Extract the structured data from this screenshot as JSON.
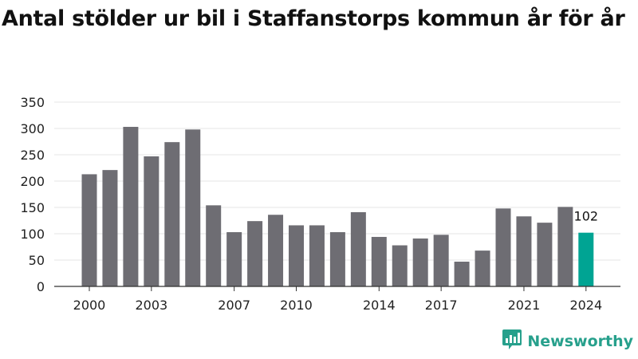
{
  "chart_data": {
    "type": "bar",
    "title": "Antal stölder ur bil i Staffanstorps kommun år för år",
    "xlabel": "",
    "ylabel": "",
    "categories": [
      "2000",
      "2001",
      "2002",
      "2003",
      "2004",
      "2005",
      "2006",
      "2007",
      "2008",
      "2009",
      "2010",
      "2011",
      "2012",
      "2013",
      "2014",
      "2015",
      "2016",
      "2017",
      "2018",
      "2019",
      "2020",
      "2021",
      "2022",
      "2023",
      "2024"
    ],
    "values": [
      213,
      221,
      303,
      247,
      274,
      298,
      154,
      103,
      124,
      136,
      116,
      116,
      103,
      141,
      94,
      78,
      91,
      98,
      47,
      68,
      148,
      133,
      121,
      151,
      102
    ],
    "x_tick_labels": [
      "2000",
      "2003",
      "2007",
      "2010",
      "2014",
      "2017",
      "2021",
      "2024"
    ],
    "y_ticks": [
      0,
      50,
      100,
      150,
      200,
      250,
      300,
      350
    ],
    "ylim": [
      0,
      350
    ],
    "grid": true,
    "highlight": {
      "category": "2024",
      "label": "102"
    },
    "colors": {
      "bar": "#6e6d73",
      "highlight": "#00a493",
      "grid": "#e6e6e6",
      "axis": "#333333"
    }
  },
  "brand": {
    "name": "Newsworthy",
    "color": "#27a08c",
    "icon": "bar-chart-pin-icon"
  }
}
